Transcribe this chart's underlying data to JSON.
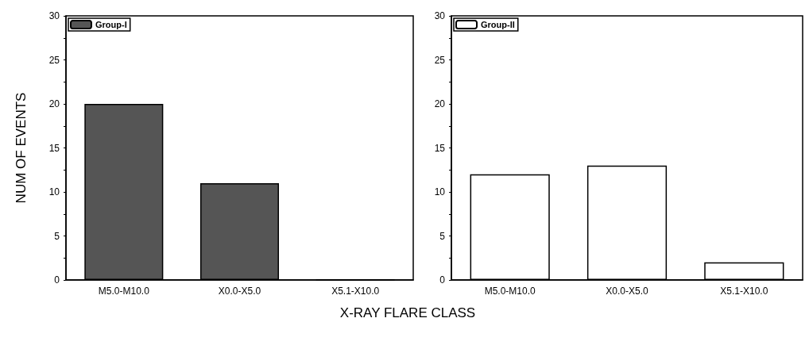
{
  "chart_data": [
    {
      "type": "bar",
      "ylabel": "NUM OF EVENTS",
      "xlabel": "X-RAY FLARE CLASS",
      "categories": [
        "M5.0-M10.0",
        "X0.0-X5.0",
        "X5.1-X10.0"
      ],
      "series": [
        {
          "name": "Group-I",
          "color": "#555555",
          "values": [
            20,
            11,
            0
          ]
        }
      ],
      "ylim": [
        0,
        30
      ],
      "yticks": [
        0,
        5,
        10,
        15,
        20,
        25,
        30
      ],
      "legend": "top left",
      "grid": false
    },
    {
      "type": "bar",
      "categories": [
        "M5.0-M10.0",
        "X0.0-X5.0",
        "X5.1-X10.0"
      ],
      "series": [
        {
          "name": "Group-II",
          "color": "#ffffff",
          "values": [
            12,
            13,
            2
          ]
        }
      ],
      "ylim": [
        0,
        30
      ],
      "yticks": [
        0,
        5,
        10,
        15,
        20,
        25,
        30
      ],
      "legend": "top left",
      "grid": false
    }
  ]
}
